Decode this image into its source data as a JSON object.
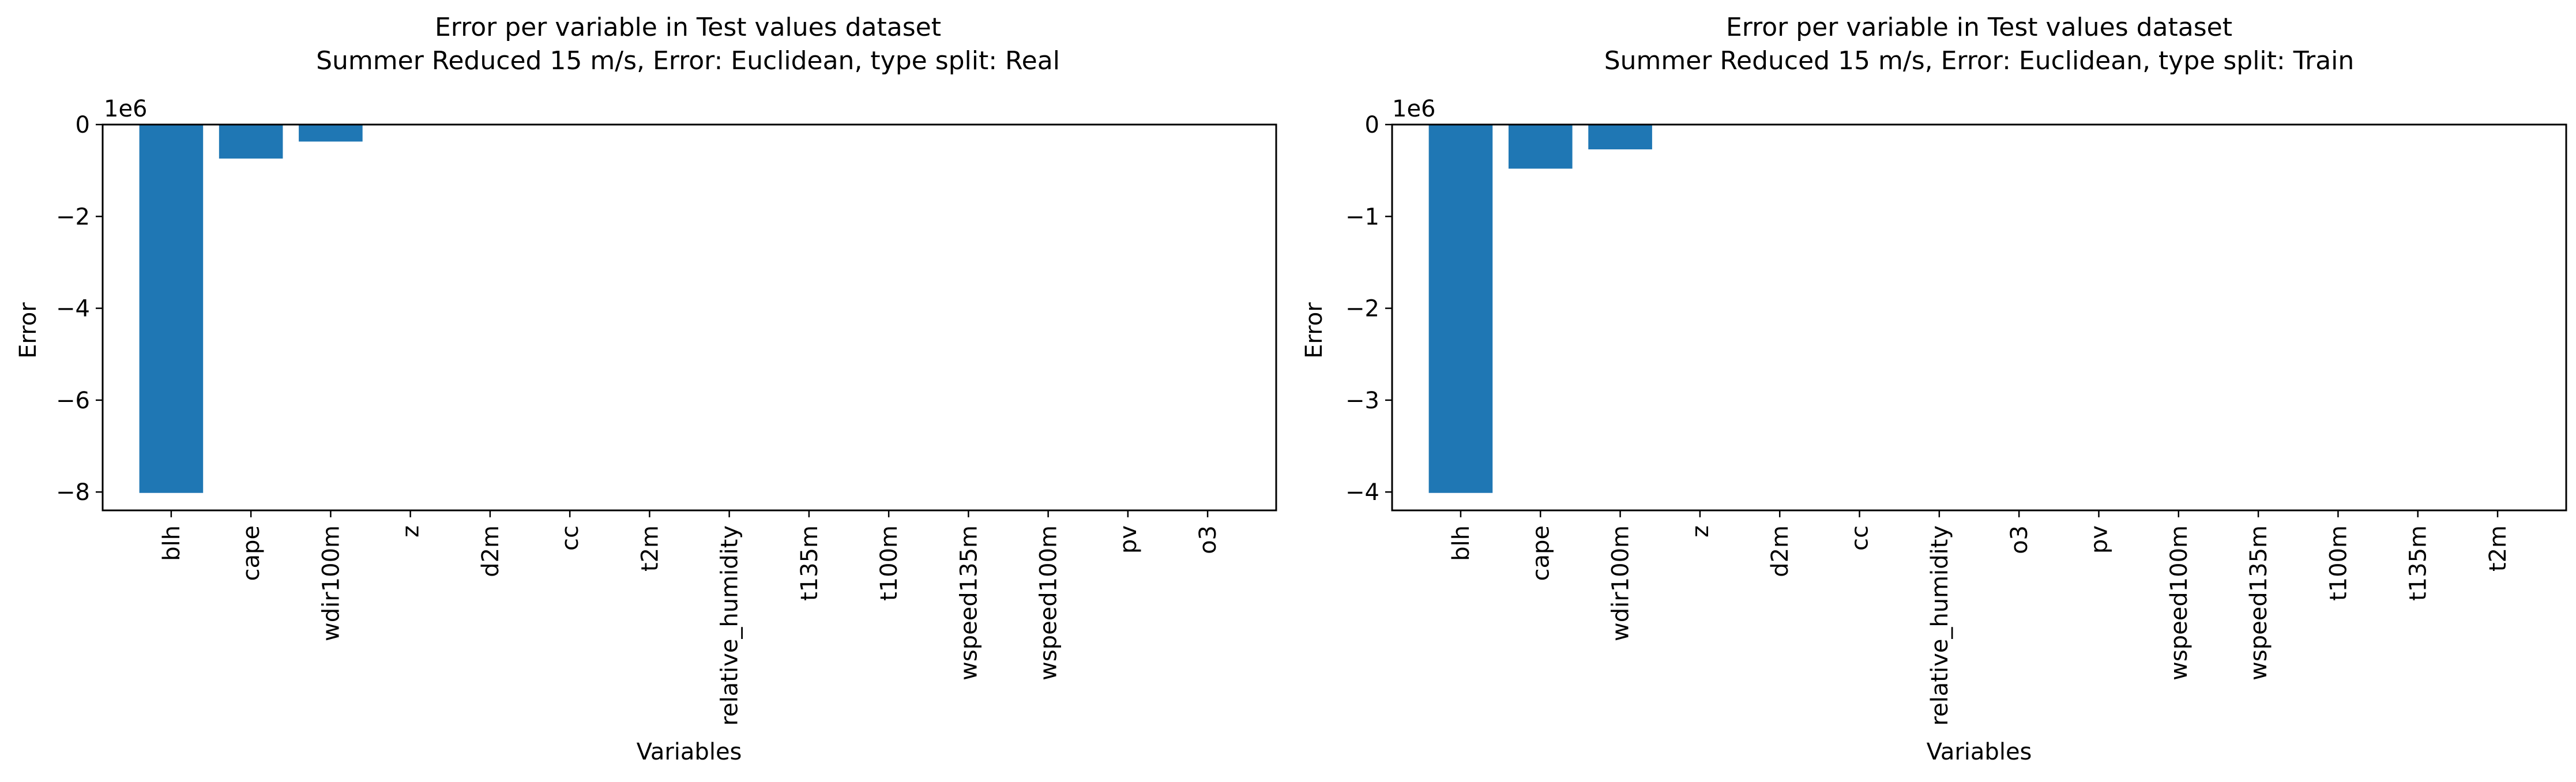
{
  "chart_data": [
    {
      "type": "bar",
      "title": "Error per variable in Test values dataset",
      "subtitle": "Summer Reduced 15 m/s, Error: Euclidean, type split: Real",
      "xlabel": "Variables",
      "ylabel": "Error",
      "offset_text": "1e6",
      "ylim": [
        -8.4,
        0
      ],
      "yticks": [
        0,
        -2,
        -4,
        -6,
        -8
      ],
      "categories": [
        "blh",
        "cape",
        "wdir100m",
        "z",
        "d2m",
        "cc",
        "t2m",
        "relative_humidity",
        "t135m",
        "t100m",
        "wspeed135m",
        "wspeed100m",
        "pv",
        "o3"
      ],
      "values": [
        -8.02,
        -0.74,
        -0.37,
        0,
        0,
        0,
        0,
        0,
        0,
        0,
        0,
        0,
        0,
        0
      ],
      "bar_color": "#1f77b4",
      "grid": false
    },
    {
      "type": "bar",
      "title": "Error per variable in Test values dataset",
      "subtitle": "Summer Reduced 15 m/s, Error: Euclidean, type split: Train",
      "xlabel": "Variables",
      "ylabel": "Error",
      "offset_text": "1e6",
      "ylim": [
        -4.2,
        0
      ],
      "yticks": [
        0,
        -1,
        -2,
        -3,
        -4
      ],
      "categories": [
        "blh",
        "cape",
        "wdir100m",
        "z",
        "d2m",
        "cc",
        "relative_humidity",
        "o3",
        "pv",
        "wspeed100m",
        "wspeed135m",
        "t100m",
        "t135m",
        "t2m"
      ],
      "values": [
        -4.01,
        -0.48,
        -0.27,
        0,
        0,
        0,
        0,
        0,
        0,
        0,
        0,
        0,
        0,
        0
      ],
      "bar_color": "#1f77b4",
      "grid": false
    }
  ]
}
